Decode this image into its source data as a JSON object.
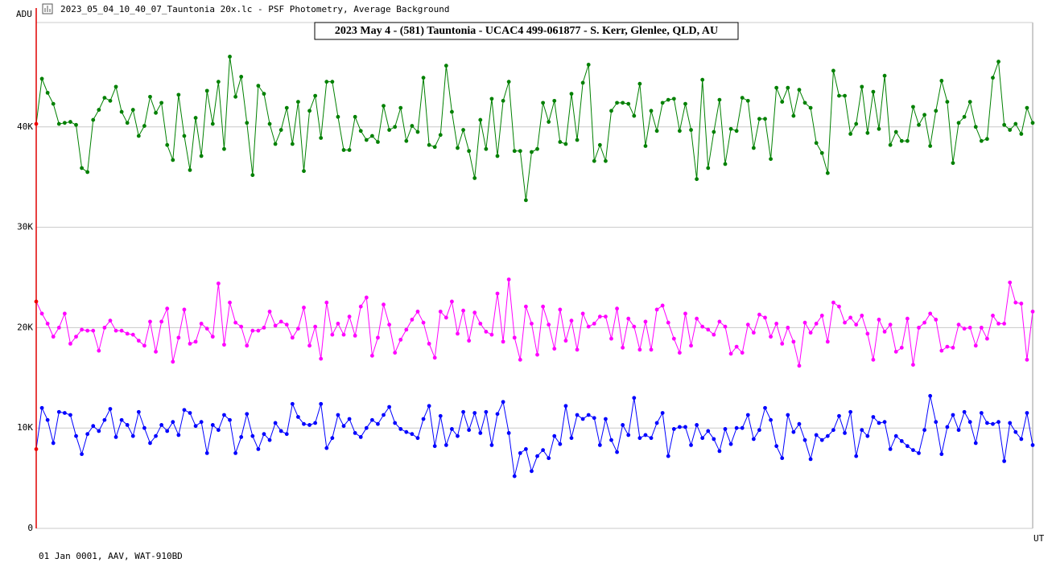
{
  "window_title": "2023_05_04_10_40_07_Tauntonia 20x.lc - PSF Photometry, Average Background",
  "footer": "01 Jan 0001, AAV, WAT-910BD",
  "chart_data": {
    "type": "line",
    "title": "2023 May 4 - (581) Tauntonia - UCAC4 499-061877 - S. Kerr, Glenlee, QLD, AU",
    "y_label": "ADU",
    "x_label": "UT",
    "ylim": [
      0,
      50000
    ],
    "yticks": [
      {
        "value": 0,
        "label": "0"
      },
      {
        "value": 10000,
        "label": "10K"
      },
      {
        "value": 20000,
        "label": "20K"
      },
      {
        "value": 30000,
        "label": "30K"
      },
      {
        "value": 40000,
        "label": "40K"
      }
    ],
    "grid": true,
    "first_point_color": "#ff0000",
    "series": [
      {
        "color": "#008000",
        "values": [
          40300,
          44800,
          43400,
          42300,
          40300,
          40400,
          40500,
          40200,
          35900,
          35500,
          40700,
          41700,
          42900,
          42600,
          44000,
          41500,
          40400,
          41700,
          39100,
          40100,
          43000,
          41400,
          42400,
          38200,
          36700,
          43200,
          39100,
          35700,
          40900,
          37100,
          43600,
          40300,
          44500,
          37800,
          47000,
          43000,
          45000,
          40400,
          35200,
          44100,
          43300,
          40300,
          38300,
          39700,
          41900,
          38300,
          42500,
          35600,
          41600,
          43100,
          38900,
          44500,
          44500,
          41000,
          37700,
          37700,
          41000,
          39600,
          38700,
          39100,
          38500,
          42100,
          39700,
          40000,
          41900,
          38600,
          40100,
          39500,
          44900,
          38200,
          38000,
          39200,
          46100,
          41500,
          37900,
          39700,
          37600,
          34900,
          40700,
          37800,
          42800,
          37100,
          42600,
          44500,
          37600,
          37600,
          32700,
          37500,
          37800,
          42400,
          40500,
          42600,
          38500,
          38300,
          43300,
          38700,
          44400,
          46200,
          36600,
          38200,
          36600,
          41600,
          42400,
          42400,
          42300,
          41100,
          44300,
          38100,
          41600,
          39600,
          42400,
          42700,
          42800,
          39600,
          42300,
          39700,
          34800,
          44700,
          35900,
          39500,
          42700,
          36300,
          39800,
          39600,
          42900,
          42600,
          37900,
          40800,
          40800,
          36800,
          43900,
          42500,
          43900,
          41100,
          43700,
          42400,
          41900,
          38400,
          37400,
          35400,
          45600,
          43100,
          43100,
          39300,
          40300,
          44000,
          39400,
          43500,
          39800,
          45100,
          38200,
          39500,
          38600,
          38600,
          42000,
          40200,
          41200,
          38100,
          41600,
          44600,
          42500,
          36400,
          40400,
          41000,
          42500,
          40000,
          38600,
          38800,
          44900,
          46500,
          40200,
          39700,
          40300,
          39300,
          41900,
          40400
        ]
      },
      {
        "color": "#ff00ff",
        "values": [
          22600,
          21400,
          20400,
          19100,
          20000,
          21400,
          18400,
          19100,
          19800,
          19700,
          19700,
          17700,
          20000,
          20700,
          19700,
          19700,
          19400,
          19300,
          18700,
          18200,
          20600,
          17600,
          20600,
          21900,
          16600,
          19000,
          21800,
          18400,
          18600,
          20400,
          19900,
          19100,
          24400,
          18300,
          22500,
          20500,
          20100,
          18200,
          19700,
          19700,
          20000,
          21600,
          20200,
          20600,
          20300,
          19000,
          19900,
          22000,
          18200,
          20100,
          16900,
          22500,
          19300,
          20400,
          19300,
          21100,
          19200,
          22100,
          23000,
          17200,
          19000,
          22300,
          20300,
          17500,
          18800,
          19800,
          20800,
          21600,
          20500,
          18400,
          17000,
          21600,
          21000,
          22600,
          19400,
          21700,
          18700,
          21500,
          20400,
          19600,
          19300,
          23400,
          18600,
          24800,
          19000,
          16800,
          22100,
          20400,
          17300,
          22100,
          20300,
          17900,
          21800,
          18700,
          20700,
          17800,
          21400,
          20100,
          20400,
          21100,
          21100,
          18900,
          21900,
          18000,
          20900,
          20100,
          17800,
          20600,
          17800,
          21800,
          22200,
          20500,
          18900,
          17500,
          21400,
          18200,
          20900,
          20100,
          19800,
          19300,
          20600,
          20100,
          17400,
          18100,
          17500,
          20300,
          19500,
          21300,
          21000,
          19100,
          20400,
          18400,
          20000,
          18600,
          16200,
          20500,
          19500,
          20400,
          21200,
          18600,
          22500,
          22100,
          20500,
          21000,
          20300,
          21200,
          19400,
          16800,
          20800,
          19600,
          20300,
          17600,
          18000,
          20900,
          16300,
          20000,
          20500,
          21400,
          20800,
          17700,
          18100,
          18000,
          20300,
          19900,
          20000,
          18200,
          20000,
          18900,
          21200,
          20400,
          20400,
          24500,
          22500,
          22400,
          16800,
          21600
        ]
      },
      {
        "color": "#0000ff",
        "values": [
          7900,
          12000,
          10800,
          8500,
          11600,
          11500,
          11300,
          9200,
          7400,
          9400,
          10200,
          9700,
          10800,
          11900,
          9100,
          10800,
          10300,
          9200,
          11600,
          10000,
          8500,
          9200,
          10300,
          9700,
          10600,
          9300,
          11800,
          11500,
          10200,
          10600,
          7500,
          10300,
          9800,
          11300,
          10800,
          7500,
          9100,
          11400,
          9200,
          7900,
          9400,
          8800,
          10500,
          9700,
          9400,
          12400,
          11100,
          10400,
          10300,
          10500,
          12400,
          8000,
          9000,
          11300,
          10200,
          10900,
          9500,
          9100,
          10000,
          10800,
          10400,
          11300,
          12100,
          10500,
          9900,
          9600,
          9400,
          9000,
          10900,
          12200,
          8200,
          11200,
          8300,
          9900,
          9200,
          11600,
          9800,
          11500,
          9500,
          11600,
          8300,
          11400,
          12600,
          9500,
          5200,
          7500,
          7900,
          5700,
          7200,
          7800,
          7000,
          9200,
          8400,
          12200,
          9000,
          11300,
          10900,
          11300,
          11000,
          8300,
          10900,
          8800,
          7600,
          10300,
          9300,
          13000,
          9000,
          9300,
          9000,
          10500,
          11500,
          7200,
          9900,
          10100,
          10100,
          8300,
          10300,
          9000,
          9700,
          8900,
          7700,
          9900,
          8400,
          10000,
          10000,
          11300,
          8900,
          9800,
          12000,
          10800,
          8200,
          7000,
          11300,
          9600,
          10400,
          8800,
          6900,
          9300,
          8800,
          9200,
          9800,
          11200,
          9500,
          11600,
          7200,
          9800,
          9200,
          11100,
          10500,
          10600,
          7900,
          9200,
          8700,
          8200,
          7800,
          7500,
          9800,
          13200,
          10600,
          7400,
          10100,
          11300,
          9800,
          11600,
          10600,
          8500,
          11500,
          10500,
          10400,
          10600,
          6700,
          10500,
          9600,
          8900,
          11500,
          8300
        ]
      }
    ]
  }
}
